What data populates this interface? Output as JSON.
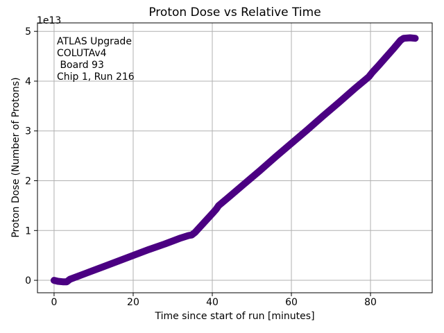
{
  "chart_data": {
    "type": "scatter",
    "title": "Proton Dose vs Relative Time",
    "xlabel": "Time since start of run [minutes]",
    "ylabel": "Proton Dose (Number of Protons)",
    "y_offset_label": "1e13",
    "annotation": "ATLAS Upgrade\nCOLUTAv4\n Board 93\nChip 1, Run 216",
    "x_ticks": [
      0,
      20,
      40,
      60,
      80
    ],
    "y_ticks": [
      0,
      1,
      2,
      3,
      4,
      5
    ],
    "xlim": [
      -4.2,
      95.6
    ],
    "ylim": [
      -0.25,
      5.17
    ],
    "y_values_scale": 10000000000000.0,
    "grid": true,
    "legend": "none",
    "line_color": "#4B0082",
    "grid_color": "#b0b0b0",
    "series": [
      {
        "name": "proton-dose",
        "points": [
          [
            0,
            0.0
          ],
          [
            1,
            -0.02
          ],
          [
            2.2,
            -0.03
          ],
          [
            3.2,
            -0.03
          ],
          [
            4,
            0.02
          ],
          [
            8,
            0.14
          ],
          [
            12,
            0.26
          ],
          [
            16,
            0.38
          ],
          [
            20,
            0.5
          ],
          [
            24,
            0.62
          ],
          [
            28,
            0.73
          ],
          [
            32,
            0.85
          ],
          [
            34,
            0.9
          ],
          [
            34.8,
            0.91
          ],
          [
            35.6,
            0.96
          ],
          [
            37,
            1.08
          ],
          [
            38.5,
            1.21
          ],
          [
            40,
            1.34
          ],
          [
            41,
            1.43
          ],
          [
            41.6,
            1.5
          ],
          [
            44,
            1.66
          ],
          [
            48,
            1.93
          ],
          [
            52,
            2.2
          ],
          [
            56,
            2.48
          ],
          [
            60,
            2.75
          ],
          [
            64,
            3.02
          ],
          [
            68,
            3.3
          ],
          [
            72,
            3.57
          ],
          [
            76,
            3.85
          ],
          [
            79,
            4.05
          ],
          [
            79.6,
            4.09
          ],
          [
            80.4,
            4.17
          ],
          [
            82,
            4.31
          ],
          [
            84,
            4.49
          ],
          [
            86,
            4.67
          ],
          [
            87.6,
            4.82
          ],
          [
            88.4,
            4.86
          ],
          [
            90,
            4.87
          ],
          [
            91.3,
            4.86
          ]
        ]
      }
    ]
  }
}
